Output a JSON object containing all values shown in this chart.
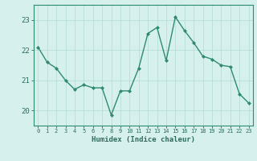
{
  "x": [
    0,
    1,
    2,
    3,
    4,
    5,
    6,
    7,
    8,
    9,
    10,
    11,
    12,
    13,
    14,
    15,
    16,
    17,
    18,
    19,
    20,
    21,
    22,
    23
  ],
  "y": [
    22.1,
    21.6,
    21.4,
    21.0,
    20.7,
    20.85,
    20.75,
    20.75,
    19.85,
    20.65,
    20.65,
    21.4,
    22.55,
    22.75,
    21.65,
    23.1,
    22.65,
    22.25,
    21.8,
    21.7,
    21.5,
    21.45,
    20.55,
    20.25
  ],
  "line_color": "#2e8b6e",
  "marker": "D",
  "marker_size": 2.0,
  "line_width": 1.0,
  "background_color": "#d6f0ee",
  "grid_color": "#b8ddd9",
  "axis_color": "#2e8b6e",
  "tick_color": "#2e6b5e",
  "xlabel": "Humidex (Indice chaleur)",
  "ylim": [
    19.5,
    23.5
  ],
  "yticks": [
    20,
    21,
    22,
    23
  ],
  "xlim": [
    -0.5,
    23.5
  ],
  "xticks": [
    0,
    1,
    2,
    3,
    4,
    5,
    6,
    7,
    8,
    9,
    10,
    11,
    12,
    13,
    14,
    15,
    16,
    17,
    18,
    19,
    20,
    21,
    22,
    23
  ],
  "font_color": "#2e6b5e"
}
